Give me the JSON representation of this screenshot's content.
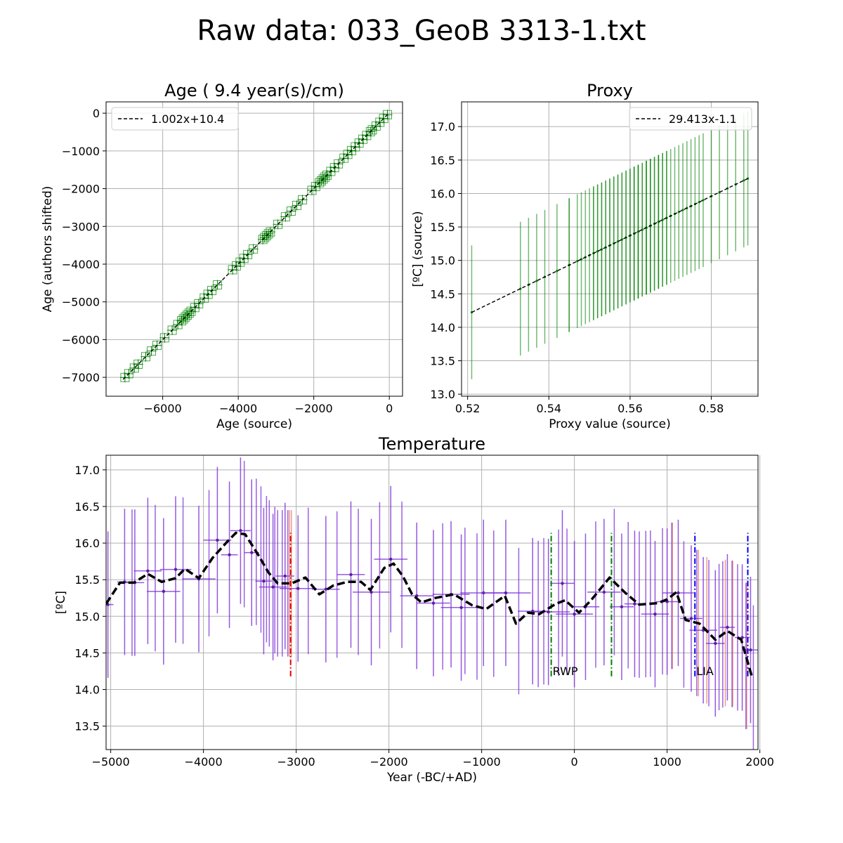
{
  "figure": {
    "suptitle": "Raw data: 033_GeoB 3313-1.txt"
  },
  "colors": {
    "green": "#008000",
    "black": "#000000",
    "purple": "#7b2fd8",
    "salmon": "#f08070",
    "red": "#e00000",
    "blue": "#0000ee",
    "grid": "#b0b0b0"
  },
  "chart_data": [
    {
      "id": "age",
      "type": "scatter",
      "title": "Age ( 9.4 year(s)/cm)",
      "xlabel": "Age (source)",
      "ylabel": "Age (authors shifted)",
      "xlim": [
        -7500,
        350
      ],
      "ylim": [
        -7500,
        300
      ],
      "xticks": [
        -6000,
        -4000,
        -2000,
        0
      ],
      "yticks": [
        -7000,
        -6000,
        -5000,
        -4000,
        -3000,
        -2000,
        -1000,
        0
      ],
      "tick_labels_x": [
        "−6000",
        "−4000",
        "−2000",
        "0"
      ],
      "tick_labels_y": [
        "−7000",
        "−6000",
        "−5000",
        "−4000",
        "−3000",
        "−2000",
        "−1000",
        "0"
      ],
      "legend": {
        "label": "1.002x+10.4",
        "position": "upper-left"
      },
      "fit": {
        "slope": 1.002,
        "intercept": 10.4,
        "xrange": [
          -7050,
          -20
        ]
      },
      "points": [
        -7000,
        -6900,
        -6750,
        -6650,
        -6450,
        -6300,
        -6150,
        -5950,
        -5750,
        -5600,
        -5500,
        -5450,
        -5400,
        -5350,
        -5300,
        -5250,
        -5150,
        -5050,
        -4900,
        -4800,
        -4700,
        -4550,
        -4150,
        -4050,
        -3950,
        -3850,
        -3750,
        -3600,
        -3350,
        -3300,
        -3250,
        -3200,
        -3150,
        -2950,
        -2750,
        -2600,
        -2450,
        -2300,
        -2050,
        -1950,
        -1850,
        -1800,
        -1750,
        -1700,
        -1650,
        -1550,
        -1450,
        -1350,
        -1200,
        -1100,
        -1000,
        -900,
        -800,
        -700,
        -600,
        -500,
        -450,
        -350,
        -250,
        -150,
        -50
      ]
    },
    {
      "id": "proxy",
      "type": "scatter",
      "title": "Proxy",
      "xlabel": "Proxy value (source)",
      "ylabel": "[ºC] (source)",
      "xlim": [
        0.5185,
        0.5915
      ],
      "ylim": [
        12.97,
        17.37
      ],
      "xticks": [
        0.52,
        0.54,
        0.56,
        0.58
      ],
      "yticks": [
        13.0,
        13.5,
        14.0,
        14.5,
        15.0,
        15.5,
        16.0,
        16.5,
        17.0
      ],
      "tick_labels_x": [
        "0.52",
        "0.54",
        "0.56",
        "0.58"
      ],
      "tick_labels_y": [
        "13.0",
        "13.5",
        "14.0",
        "14.5",
        "15.0",
        "15.5",
        "16.0",
        "16.5",
        "17.0"
      ],
      "legend": {
        "label": "29.413x-1.1",
        "position": "upper-right"
      },
      "fit": {
        "slope": 29.413,
        "intercept": -1.1,
        "xrange": [
          0.521,
          0.589
        ]
      },
      "error_bar": 1.0,
      "points": [
        0.521,
        0.533,
        0.535,
        0.537,
        0.539,
        0.542,
        0.545,
        0.545,
        0.547,
        0.548,
        0.549,
        0.55,
        0.551,
        0.551,
        0.552,
        0.552,
        0.553,
        0.553,
        0.554,
        0.554,
        0.555,
        0.555,
        0.556,
        0.556,
        0.557,
        0.557,
        0.558,
        0.558,
        0.559,
        0.559,
        0.56,
        0.56,
        0.561,
        0.561,
        0.561,
        0.562,
        0.562,
        0.562,
        0.563,
        0.563,
        0.564,
        0.564,
        0.564,
        0.565,
        0.565,
        0.565,
        0.566,
        0.566,
        0.567,
        0.567,
        0.567,
        0.568,
        0.568,
        0.569,
        0.569,
        0.57,
        0.571,
        0.572,
        0.573,
        0.574,
        0.575,
        0.576,
        0.577,
        0.578,
        0.58,
        0.582,
        0.584,
        0.586,
        0.588,
        0.589
      ]
    },
    {
      "id": "temperature",
      "type": "line",
      "title": "Temperature",
      "xlabel": "Year (-BC/+AD)",
      "ylabel": "[ºC]",
      "xlim": [
        -5050,
        1980
      ],
      "ylim": [
        13.18,
        17.2
      ],
      "xticks": [
        -5000,
        -4000,
        -3000,
        -2000,
        -1000,
        0,
        1000,
        2000
      ],
      "yticks": [
        13.5,
        14.0,
        14.5,
        15.0,
        15.5,
        16.0,
        16.5,
        17.0
      ],
      "tick_labels_x": [
        "−5000",
        "−4000",
        "−3000",
        "−2000",
        "−1000",
        "0",
        "1000",
        "2000"
      ],
      "tick_labels_y": [
        "13.5",
        "14.0",
        "14.5",
        "15.0",
        "15.5",
        "16.0",
        "16.5",
        "17.0"
      ],
      "error_bar": 1.0,
      "smooth": [
        [
          -5050,
          15.17
        ],
        [
          -4900,
          15.46
        ],
        [
          -4750,
          15.46
        ],
        [
          -4600,
          15.58
        ],
        [
          -4450,
          15.47
        ],
        [
          -4300,
          15.52
        ],
        [
          -4200,
          15.65
        ],
        [
          -4050,
          15.52
        ],
        [
          -3900,
          15.8
        ],
        [
          -3750,
          16.01
        ],
        [
          -3650,
          16.14
        ],
        [
          -3550,
          16.12
        ],
        [
          -3400,
          15.82
        ],
        [
          -3300,
          15.6
        ],
        [
          -3200,
          15.45
        ],
        [
          -3050,
          15.45
        ],
        [
          -2900,
          15.53
        ],
        [
          -2750,
          15.3
        ],
        [
          -2600,
          15.42
        ],
        [
          -2450,
          15.47
        ],
        [
          -2300,
          15.47
        ],
        [
          -2200,
          15.36
        ],
        [
          -2050,
          15.66
        ],
        [
          -1950,
          15.72
        ],
        [
          -1850,
          15.55
        ],
        [
          -1750,
          15.3
        ],
        [
          -1650,
          15.19
        ],
        [
          -1500,
          15.25
        ],
        [
          -1300,
          15.3
        ],
        [
          -1100,
          15.15
        ],
        [
          -950,
          15.1
        ],
        [
          -750,
          15.28
        ],
        [
          -630,
          14.9
        ],
        [
          -500,
          15.05
        ],
        [
          -380,
          15.03
        ],
        [
          -200,
          15.17
        ],
        [
          -100,
          15.22
        ],
        [
          50,
          15.05
        ],
        [
          180,
          15.22
        ],
        [
          380,
          15.53
        ],
        [
          550,
          15.32
        ],
        [
          700,
          15.16
        ],
        [
          900,
          15.18
        ],
        [
          1000,
          15.23
        ],
        [
          1100,
          15.33
        ],
        [
          1200,
          14.95
        ],
        [
          1350,
          14.9
        ],
        [
          1520,
          14.68
        ],
        [
          1650,
          14.8
        ],
        [
          1800,
          14.68
        ],
        [
          1920,
          14.15
        ]
      ],
      "points": [
        [
          -5030,
          15.16,
          60,
          1.0
        ],
        [
          -4850,
          15.47,
          80,
          1.0
        ],
        [
          -4740,
          15.46,
          100,
          1.0
        ],
        [
          -4600,
          15.62,
          150,
          1.0
        ],
        [
          -4430,
          15.34,
          180,
          1.0
        ],
        [
          -4300,
          15.64,
          170,
          1.0
        ],
        [
          -4050,
          15.51,
          180,
          1.0
        ],
        [
          -3850,
          16.04,
          150,
          1.0
        ],
        [
          -3720,
          15.84,
          90,
          1.0
        ],
        [
          -3600,
          16.17,
          110,
          1.0
        ],
        [
          -3480,
          15.87,
          80,
          1.0
        ],
        [
          -3350,
          15.48,
          90,
          1.0
        ],
        [
          -3250,
          15.4,
          150,
          1.0
        ],
        [
          -3120,
          15.55,
          100,
          1.0
        ],
        [
          -2980,
          15.38,
          200,
          1.0
        ],
        [
          -2680,
          15.37,
          150,
          1.0
        ],
        [
          -2410,
          15.57,
          150,
          1.0
        ],
        [
          -2190,
          15.33,
          200,
          1.0
        ],
        [
          -1980,
          15.78,
          180,
          1.0
        ],
        [
          -1700,
          15.28,
          180,
          1.0
        ],
        [
          -1520,
          15.18,
          180,
          1.0
        ],
        [
          -1330,
          15.3,
          200,
          1.0
        ],
        [
          -1220,
          15.12,
          220,
          1.0
        ],
        [
          -980,
          15.32,
          250,
          1.0
        ],
        [
          -740,
          15.32,
          270,
          1.0
        ],
        [
          -450,
          15.07,
          160,
          1.0
        ],
        [
          -280,
          15.06,
          230,
          1.0
        ],
        [
          -130,
          15.45,
          130,
          1.0
        ],
        [
          0,
          15.03,
          200,
          1.0
        ],
        [
          120,
          15.13,
          150,
          1.0
        ],
        [
          320,
          15.33,
          180,
          1.0
        ],
        [
          510,
          15.13,
          130,
          1.0
        ],
        [
          650,
          15.17,
          110,
          1.0
        ],
        [
          870,
          15.03,
          150,
          1.0
        ],
        [
          1000,
          15.2,
          120,
          1.0
        ],
        [
          1120,
          15.32,
          170,
          1.0
        ],
        [
          1260,
          14.97,
          120,
          1.0
        ],
        [
          1390,
          14.81,
          150,
          1.0
        ],
        [
          1520,
          14.63,
          100,
          1.0
        ],
        [
          1650,
          14.85,
          80,
          1.0
        ],
        [
          1810,
          14.71,
          80,
          1.0
        ],
        [
          1900,
          14.54,
          90,
          1.0
        ]
      ],
      "extra_bars": [
        -4770,
        -4520,
        -4220,
        -3940,
        -3560,
        -3430,
        -3380,
        -3320,
        -3290,
        -3230,
        -3200,
        -3150,
        -3090,
        -2870,
        -2560,
        -2330,
        -2100,
        -1860,
        -1420,
        -1180,
        -1050,
        -870,
        -600,
        -390,
        -330,
        -170,
        -80,
        230,
        430,
        580,
        700,
        770,
        820,
        950,
        1050,
        1180,
        1320,
        1450,
        1560,
        1600,
        1700,
        1760,
        1850,
        1930
      ],
      "salmon_bars": [
        -3080,
        -3060,
        1050,
        1330,
        1420,
        1620,
        1700,
        1850
      ],
      "markers": [
        {
          "x": -3060,
          "label": "",
          "color": "red",
          "y0": 14.18,
          "y1": 16.14
        },
        {
          "x": -250,
          "label": "RWP",
          "color": "green",
          "y0": 14.18,
          "y1": 16.14
        },
        {
          "x": 400,
          "label": "",
          "color": "green",
          "y0": 14.18,
          "y1": 16.14
        },
        {
          "x": 1300,
          "label": "LIA",
          "color": "blue",
          "y0": 14.18,
          "y1": 16.14
        },
        {
          "x": 1870,
          "label": "",
          "color": "blue",
          "y0": 14.18,
          "y1": 16.14
        }
      ]
    }
  ]
}
